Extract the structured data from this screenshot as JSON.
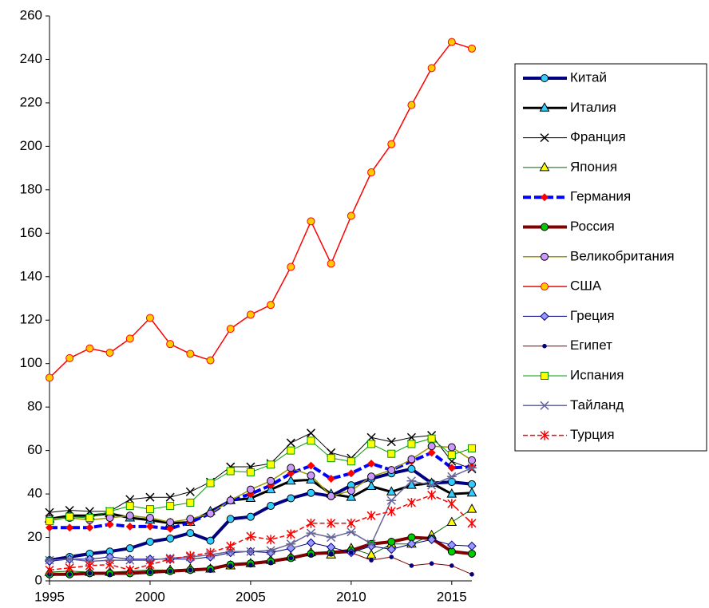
{
  "chart_data": {
    "type": "line",
    "x": [
      1995,
      1996,
      1997,
      1998,
      1999,
      2000,
      2001,
      2002,
      2003,
      2004,
      2005,
      2006,
      2007,
      2008,
      2009,
      2010,
      2011,
      2012,
      2013,
      2014,
      2015,
      2016
    ],
    "xlim": [
      1995,
      2016
    ],
    "xticks": [
      1995,
      2000,
      2005,
      2010,
      2015
    ],
    "ylim": [
      0,
      260
    ],
    "yticks": [
      0,
      20,
      40,
      60,
      80,
      100,
      120,
      140,
      160,
      180,
      200,
      220,
      240,
      260
    ],
    "grid": false,
    "legend": "right",
    "series": [
      {
        "name": "Китай",
        "color": "#000080",
        "width": 4,
        "marker": "circle",
        "marker_fill": "#33ccff",
        "values": [
          9.5,
          11,
          12.5,
          13.5,
          15,
          18,
          19.5,
          22,
          18.5,
          28.5,
          29.5,
          34.5,
          38,
          40.5,
          39,
          44,
          47,
          49.5,
          51.5,
          45,
          45.5,
          44.5
        ]
      },
      {
        "name": "Италия",
        "color": "#000000",
        "width": 3,
        "marker": "triangle",
        "marker_fill": "#33ccff",
        "values": [
          28.5,
          30,
          30,
          31,
          29,
          28,
          26.5,
          27,
          32,
          37,
          38,
          42,
          46,
          46.5,
          40,
          38.5,
          43.5,
          41,
          44,
          45,
          40,
          40.5
        ]
      },
      {
        "name": "Франция",
        "color": "#000000",
        "width": 1,
        "marker": "x",
        "marker_fill": "#000000",
        "values": [
          31.5,
          32.5,
          32,
          32,
          37.5,
          38.5,
          38.5,
          41,
          45.5,
          52.5,
          52.5,
          54,
          63.5,
          68,
          59,
          56.5,
          66,
          64,
          66,
          67,
          55,
          51.5
        ]
      },
      {
        "name": "Япония",
        "color": "#006600",
        "width": 1,
        "marker": "triangle",
        "marker_fill": "#ffff00",
        "values": [
          4,
          4.5,
          4,
          4,
          4.5,
          5,
          5,
          5.5,
          5.5,
          7,
          8,
          9.5,
          11,
          13,
          12,
          15,
          12,
          17,
          17,
          21,
          27,
          33
        ]
      },
      {
        "name": "Германия",
        "color": "#0000ff",
        "width": 4,
        "dash": true,
        "marker": "diamond",
        "marker_fill": "#ff0000",
        "values": [
          24.5,
          24.5,
          24.5,
          26,
          25,
          25,
          24,
          27,
          31,
          37,
          40,
          44,
          49.5,
          53,
          47,
          49.5,
          54,
          51,
          55,
          59,
          52,
          52.5
        ]
      },
      {
        "name": "Россия",
        "color": "#800000",
        "width": 4,
        "marker": "circle",
        "marker_fill": "#00cc00",
        "values": [
          3,
          3,
          3.5,
          3.5,
          3.5,
          4,
          4.5,
          5,
          5.5,
          7.5,
          8,
          9,
          10.5,
          12.5,
          13,
          14,
          17,
          18,
          20,
          19.5,
          13.5,
          12.5
        ]
      },
      {
        "name": "Великобритания",
        "color": "#999900",
        "width": 1.5,
        "marker": "circle",
        "marker_fill": "#cc99ff",
        "values": [
          28.5,
          29,
          28,
          29,
          30,
          29,
          27,
          28.5,
          31,
          37,
          42,
          46,
          52,
          48.5,
          39,
          41.5,
          48,
          51,
          56,
          62,
          61.5,
          55.5
        ]
      },
      {
        "name": "США",
        "color": "#ff0000",
        "width": 1.5,
        "marker": "circle",
        "marker_fill": "#ffcc00",
        "values": [
          93.5,
          102.5,
          107,
          105,
          111.5,
          121,
          109,
          104.5,
          101.5,
          116,
          122.5,
          127,
          144.5,
          165.5,
          146,
          168,
          188,
          201,
          219,
          236,
          248,
          245
        ]
      },
      {
        "name": "Греция",
        "color": "#000080",
        "width": 1,
        "marker": "diamond",
        "marker_fill": "#9999ff",
        "values": [
          9,
          10,
          10,
          11,
          10,
          10,
          10,
          10,
          11,
          13,
          13.5,
          13,
          15,
          17.5,
          15.5,
          13,
          16,
          14.5,
          17,
          19,
          16.5,
          16
        ]
      },
      {
        "name": "Египет",
        "color": "#800000",
        "width": 1,
        "marker": "dot",
        "marker_fill": "#000080",
        "values": [
          3,
          3,
          3.5,
          3,
          4,
          4,
          4.5,
          5,
          5,
          7,
          7.5,
          8.5,
          10.5,
          12,
          12.5,
          13,
          9.5,
          11,
          7,
          8,
          7,
          3
        ]
      },
      {
        "name": "Испания",
        "color": "#009900",
        "width": 1,
        "marker": "square",
        "marker_fill": "#ffff00",
        "values": [
          27.5,
          29.5,
          29,
          32,
          34.5,
          33,
          34.5,
          36,
          45,
          50.5,
          50,
          53.5,
          60,
          64.5,
          56.5,
          55,
          63,
          58.5,
          63,
          65.5,
          58,
          61
        ]
      },
      {
        "name": "Тайланд",
        "color": "#666699",
        "width": 1.5,
        "marker": "asterisk",
        "marker_fill": "#666699",
        "values": [
          9.5,
          10,
          9,
          9.5,
          9.5,
          9.5,
          10.5,
          11,
          12,
          13.5,
          13.5,
          14,
          17,
          22,
          20,
          22.5,
          17,
          37,
          46,
          44,
          48,
          52
        ]
      },
      {
        "name": "Турция",
        "color": "#ff0000",
        "width": 1.5,
        "dash": true,
        "marker": "star",
        "marker_fill": "#ff0000",
        "values": [
          5,
          6,
          7,
          7.5,
          5,
          7.5,
          10,
          11.5,
          13,
          16,
          20.5,
          19,
          21.5,
          26.5,
          26.5,
          26.5,
          30,
          32,
          36,
          39.5,
          35.5,
          26.5
        ]
      }
    ]
  }
}
